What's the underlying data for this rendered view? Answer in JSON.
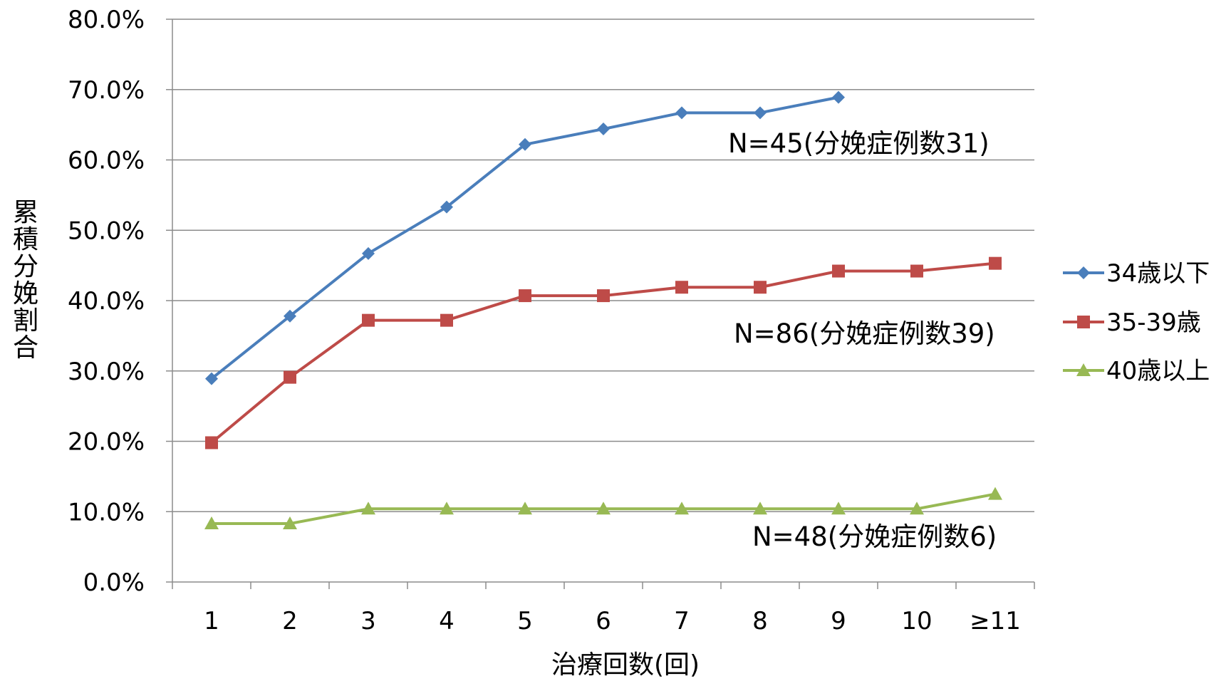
{
  "chart_data": {
    "type": "line",
    "categories": [
      "1",
      "2",
      "3",
      "4",
      "5",
      "6",
      "7",
      "8",
      "9",
      "10",
      "≥11"
    ],
    "series": [
      {
        "name": "34歳以下",
        "color": "#4a7ebb",
        "marker": "diamond",
        "values": [
          28.9,
          37.8,
          46.7,
          53.3,
          62.2,
          64.4,
          66.7,
          66.7,
          68.9,
          null,
          null
        ]
      },
      {
        "name": "35-39歳",
        "color": "#be4b48",
        "marker": "square",
        "values": [
          19.8,
          29.1,
          37.2,
          37.2,
          40.7,
          40.7,
          41.9,
          41.9,
          44.2,
          44.2,
          45.3
        ]
      },
      {
        "name": "40歳以上",
        "color": "#98b954",
        "marker": "triangle",
        "values": [
          8.3,
          8.3,
          10.4,
          10.4,
          10.4,
          10.4,
          10.4,
          10.4,
          10.4,
          10.4,
          12.5
        ]
      }
    ],
    "ylim": [
      0,
      80
    ],
    "y_ticks": [
      "0.0%",
      "10.0%",
      "20.0%",
      "30.0%",
      "40.0%",
      "50.0%",
      "60.0%",
      "70.0%",
      "80.0%"
    ],
    "xlabel": "治療回数(回)",
    "ylabel": "累積分娩割合",
    "grid": true,
    "legend_position": "right",
    "annotations": [
      {
        "text": "N=45(分娩症例数31)",
        "series": "34歳以下"
      },
      {
        "text": "N=86(分娩症例数39)",
        "series": "35-39歳"
      },
      {
        "text": "N=48(分娩症例数6)",
        "series": "40歳以上"
      }
    ]
  }
}
